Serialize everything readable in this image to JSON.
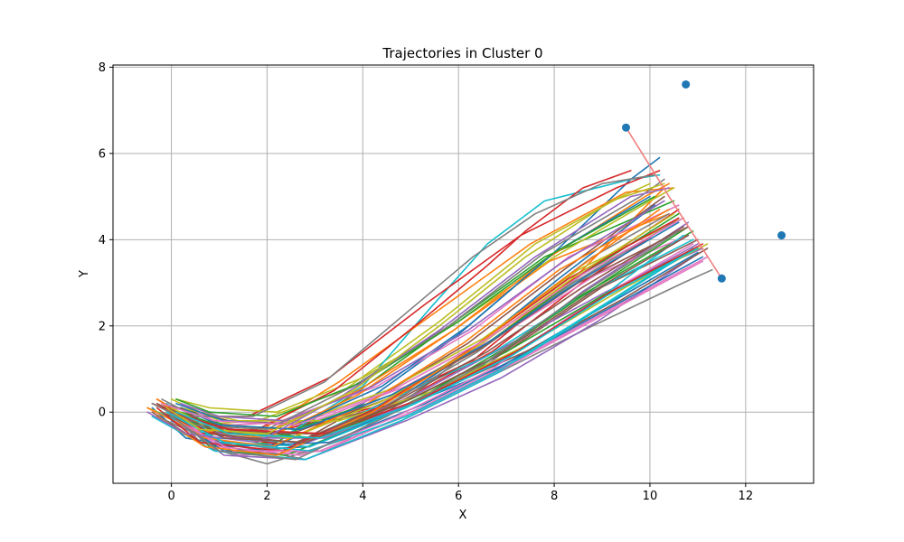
{
  "chart_data": {
    "type": "line",
    "title": "Trajectories in Cluster 0",
    "xlabel": "X",
    "ylabel": "Y",
    "xlim": [
      -1.22,
      13.42
    ],
    "ylim": [
      -1.65,
      8.05
    ],
    "x_ticks": [
      0,
      2,
      4,
      6,
      8,
      10,
      12
    ],
    "y_ticks": [
      0,
      2,
      4,
      6,
      8
    ],
    "grid": true,
    "legend": "none",
    "line_colors": [
      "#1f77b4",
      "#ff7f0e",
      "#2ca02c",
      "#d62728",
      "#9467bd",
      "#8c564b",
      "#e377c2",
      "#7f7f7f",
      "#bcbd22",
      "#17becf"
    ],
    "marker_color": "#1f77b4",
    "connector_color": "#f08080",
    "series": [
      {
        "x": [
          -0.4,
          0.3,
          2.0,
          4.0,
          6.0,
          8.0,
          9.6,
          10.2
        ],
        "y": [
          0.1,
          -0.6,
          -0.9,
          0.2,
          1.8,
          3.7,
          5.4,
          5.9
        ]
      },
      {
        "x": [
          -0.2,
          0.8,
          2.5,
          4.5,
          6.5,
          8.5,
          10.3
        ],
        "y": [
          0.2,
          -0.4,
          -0.6,
          0.3,
          1.5,
          3.2,
          5.2
        ]
      },
      {
        "x": [
          0.0,
          0.9,
          2.2,
          3.8,
          5.8,
          7.8,
          10.5
        ],
        "y": [
          -0.1,
          -0.8,
          -0.7,
          0.4,
          2.0,
          3.6,
          4.9
        ]
      },
      {
        "x": [
          -0.3,
          0.6,
          2.0,
          4.2,
          6.3,
          8.3,
          10.6
        ],
        "y": [
          0.3,
          -0.3,
          -0.5,
          0.1,
          1.2,
          3.0,
          4.7
        ]
      },
      {
        "x": [
          0.1,
          1.0,
          2.6,
          4.6,
          6.6,
          8.6,
          10.8
        ],
        "y": [
          0.0,
          -0.5,
          -0.8,
          0.0,
          1.1,
          2.8,
          4.4
        ]
      },
      {
        "x": [
          -0.2,
          1.2,
          3.0,
          5.0,
          7.0,
          9.0,
          11.0
        ],
        "y": [
          0.2,
          -0.2,
          -0.3,
          0.3,
          1.4,
          2.9,
          4.0
        ]
      },
      {
        "x": [
          0.0,
          1.4,
          3.2,
          5.2,
          7.2,
          9.2,
          11.2
        ],
        "y": [
          -0.2,
          -1.0,
          -0.9,
          0.1,
          1.2,
          2.4,
          3.6
        ]
      },
      {
        "x": [
          0.2,
          1.0,
          2.8,
          4.8,
          6.8,
          8.8,
          10.7,
          11.3
        ],
        "y": [
          0.1,
          -0.7,
          -1.1,
          -0.2,
          0.9,
          2.0,
          3.0,
          3.3
        ]
      },
      {
        "x": [
          -0.5,
          0.4,
          1.8,
          3.6,
          5.6,
          7.6,
          9.4,
          10.0
        ],
        "y": [
          0.1,
          -0.3,
          -0.2,
          0.5,
          2.1,
          3.9,
          5.0,
          5.3
        ]
      },
      {
        "x": [
          -0.1,
          0.7,
          2.3,
          4.0,
          5.4,
          6.6,
          7.8,
          9.6,
          10.2
        ],
        "y": [
          0.2,
          -0.4,
          -0.6,
          0.6,
          2.4,
          3.9,
          4.9,
          5.4,
          5.5
        ]
      },
      {
        "x": [
          0.1,
          1.1,
          2.7,
          4.3,
          6.1,
          8.1,
          10.1
        ],
        "y": [
          -0.1,
          -0.6,
          -0.7,
          0.0,
          1.3,
          3.1,
          4.8
        ]
      },
      {
        "x": [
          -0.3,
          0.5,
          2.1,
          3.9,
          5.9,
          7.9,
          10.4
        ],
        "y": [
          0.3,
          -0.2,
          -0.4,
          0.5,
          1.9,
          3.5,
          4.6
        ]
      },
      {
        "x": [
          0.0,
          0.9,
          2.4,
          4.4,
          6.4,
          8.4,
          10.9
        ],
        "y": [
          0.0,
          -0.9,
          -1.0,
          -0.1,
          1.0,
          2.6,
          4.2
        ]
      },
      {
        "x": [
          -0.2,
          0.8,
          2.6,
          4.7,
          6.7,
          8.7,
          10.6
        ],
        "y": [
          0.2,
          -0.5,
          -0.8,
          0.2,
          1.4,
          3.1,
          4.5
        ]
      },
      {
        "x": [
          0.2,
          1.3,
          3.1,
          5.1,
          7.1,
          9.1,
          11.1
        ],
        "y": [
          0.1,
          -0.4,
          -0.5,
          0.4,
          1.6,
          2.8,
          3.8
        ]
      },
      {
        "x": [
          -0.4,
          0.6,
          2.2,
          4.1,
          6.2,
          8.2,
          10.3
        ],
        "y": [
          0.0,
          -0.7,
          -1.0,
          0.2,
          1.6,
          3.3,
          5.0
        ]
      },
      {
        "x": [
          0.1,
          1.2,
          3.0,
          4.9,
          6.9,
          8.9,
          10.8
        ],
        "y": [
          -0.1,
          -0.3,
          -0.2,
          0.6,
          1.8,
          3.2,
          4.1
        ]
      },
      {
        "x": [
          -0.1,
          0.7,
          2.0,
          3.7,
          5.3,
          7.0,
          8.8,
          10.4
        ],
        "y": [
          0.1,
          -0.8,
          -1.2,
          -0.6,
          0.6,
          2.1,
          3.6,
          4.6
        ]
      },
      {
        "x": [
          0.0,
          1.0,
          2.5,
          4.5,
          6.5,
          8.5,
          10.7
        ],
        "y": [
          0.3,
          -0.2,
          -0.3,
          0.5,
          1.7,
          3.3,
          4.5
        ]
      },
      {
        "x": [
          -0.3,
          0.9,
          2.7,
          4.6,
          6.6,
          8.6,
          10.9
        ],
        "y": [
          0.0,
          -0.6,
          -0.7,
          0.3,
          1.3,
          2.7,
          4.0
        ]
      },
      {
        "x": [
          0.1,
          1.1,
          2.9,
          4.8,
          6.8,
          8.8,
          11.0
        ],
        "y": [
          -0.2,
          -0.9,
          -0.8,
          0.1,
          1.0,
          2.3,
          3.7
        ]
      },
      {
        "x": [
          -0.2,
          0.5,
          1.9,
          3.5,
          5.5,
          7.5,
          9.5,
          10.5
        ],
        "y": [
          0.2,
          -0.3,
          -0.4,
          0.7,
          2.3,
          3.9,
          5.1,
          5.2
        ]
      },
      {
        "x": [
          0.2,
          1.2,
          3.0,
          5.0,
          7.0,
          9.0,
          10.8
        ],
        "y": [
          0.0,
          -0.4,
          -0.6,
          0.2,
          1.5,
          3.0,
          4.3
        ]
      },
      {
        "x": [
          -0.4,
          0.3,
          1.6,
          3.3,
          5.3,
          7.3,
          9.3,
          10.2
        ],
        "y": [
          0.2,
          -0.1,
          -0.1,
          0.8,
          2.5,
          4.1,
          5.2,
          5.6
        ]
      },
      {
        "x": [
          0.0,
          1.1,
          2.8,
          4.9,
          6.9,
          8.9,
          10.9
        ],
        "y": [
          -0.1,
          -1.0,
          -1.1,
          -0.2,
          0.8,
          2.1,
          3.6
        ]
      },
      {
        "x": [
          -0.1,
          1.3,
          3.4,
          5.4,
          7.4,
          9.4,
          11.2
        ],
        "y": [
          0.1,
          -0.5,
          -0.5,
          0.4,
          1.4,
          2.6,
          3.8
        ]
      },
      {
        "x": [
          0.2,
          0.9,
          2.3,
          4.3,
          6.3,
          8.3,
          10.6
        ],
        "y": [
          0.2,
          -0.2,
          -0.2,
          0.6,
          1.9,
          3.6,
          4.8
        ]
      },
      {
        "x": [
          -0.3,
          0.7,
          2.4,
          4.4,
          6.4,
          8.4,
          10.5
        ],
        "y": [
          -0.1,
          -0.6,
          -0.9,
          0.1,
          1.4,
          3.0,
          4.4
        ]
      },
      {
        "x": [
          0.1,
          0.8,
          2.2,
          4.0,
          6.0,
          8.0,
          10.0,
          10.5
        ],
        "y": [
          0.3,
          0.1,
          0.0,
          0.8,
          2.1,
          3.6,
          4.9,
          5.2
        ]
      },
      {
        "x": [
          -0.2,
          1.0,
          2.9,
          4.9,
          6.9,
          8.9,
          10.7
        ],
        "y": [
          0.0,
          -0.7,
          -0.8,
          0.1,
          1.2,
          2.6,
          4.1
        ]
      },
      {
        "x": [
          0.0,
          1.2,
          3.3,
          5.3,
          7.3,
          9.3,
          11.1
        ],
        "y": [
          -0.2,
          -0.8,
          -0.7,
          0.2,
          1.3,
          2.5,
          3.6
        ]
      },
      {
        "x": [
          -0.5,
          0.4,
          2.0,
          3.9,
          5.9,
          7.9,
          9.9,
          10.4
        ],
        "y": [
          0.1,
          -0.4,
          -0.6,
          0.4,
          1.9,
          3.6,
          5.0,
          5.3
        ]
      },
      {
        "x": [
          0.2,
          1.1,
          2.6,
          4.6,
          6.6,
          8.6,
          10.6
        ],
        "y": [
          0.1,
          -0.3,
          -0.4,
          0.4,
          1.6,
          3.2,
          4.6
        ]
      },
      {
        "x": [
          -0.1,
          0.6,
          1.8,
          3.4,
          5.2,
          6.6,
          7.4,
          8.6,
          9.6
        ],
        "y": [
          0.0,
          -0.5,
          -0.4,
          0.5,
          2.1,
          3.4,
          4.2,
          5.2,
          5.6
        ]
      },
      {
        "x": [
          0.1,
          1.3,
          3.2,
          5.2,
          7.2,
          9.2,
          11.0
        ],
        "y": [
          -0.1,
          -0.6,
          -0.6,
          0.3,
          1.4,
          2.8,
          3.9
        ]
      },
      {
        "x": [
          -0.3,
          0.8,
          2.5,
          4.5,
          6.5,
          8.5,
          10.8
        ],
        "y": [
          0.2,
          -0.4,
          -0.5,
          0.3,
          1.5,
          3.0,
          4.3
        ]
      },
      {
        "x": [
          0.0,
          1.0,
          2.7,
          4.7,
          6.7,
          8.7,
          10.9
        ],
        "y": [
          0.0,
          -0.8,
          -1.0,
          -0.1,
          1.0,
          2.5,
          3.9
        ]
      },
      {
        "x": [
          -0.2,
          0.5,
          1.7,
          3.2,
          4.8,
          6.3,
          7.6,
          9.0,
          10.1
        ],
        "y": [
          0.3,
          -0.1,
          -0.1,
          0.7,
          2.2,
          3.6,
          4.6,
          5.3,
          5.5
        ]
      },
      {
        "x": [
          0.2,
          1.4,
          3.5,
          5.5,
          7.5,
          9.5,
          11.2
        ],
        "y": [
          0.1,
          -0.2,
          -0.2,
          0.5,
          1.6,
          2.9,
          3.9
        ]
      },
      {
        "x": [
          -0.4,
          0.9,
          2.8,
          4.8,
          6.8,
          8.8,
          10.8
        ],
        "y": [
          -0.1,
          -0.9,
          -1.1,
          -0.2,
          0.9,
          2.3,
          3.7
        ]
      },
      {
        "x": [
          0.1,
          1.1,
          2.6,
          4.4,
          6.2,
          8.0,
          10.0
        ],
        "y": [
          0.2,
          -0.2,
          -0.3,
          0.6,
          2.0,
          3.7,
          5.0
        ]
      },
      {
        "x": [
          -0.1,
          0.7,
          2.1,
          4.1,
          6.1,
          8.1,
          10.4
        ],
        "y": [
          0.0,
          -0.6,
          -0.8,
          0.2,
          1.6,
          3.3,
          4.7
        ]
      },
      {
        "x": [
          0.0,
          1.2,
          3.0,
          5.0,
          7.0,
          9.0,
          11.0
        ],
        "y": [
          -0.1,
          -0.5,
          -0.6,
          0.3,
          1.4,
          2.7,
          3.8
        ]
      },
      {
        "x": [
          -0.3,
          0.6,
          2.3,
          4.3,
          6.3,
          8.3,
          10.6
        ],
        "y": [
          0.1,
          -0.7,
          -0.9,
          0.1,
          1.5,
          3.1,
          4.5
        ]
      },
      {
        "x": [
          0.2,
          1.0,
          2.4,
          4.2,
          6.2,
          8.2,
          10.3
        ],
        "y": [
          0.2,
          -0.1,
          -0.2,
          0.6,
          1.9,
          3.5,
          4.9
        ]
      },
      {
        "x": [
          -0.2,
          0.8,
          2.6,
          4.6,
          6.6,
          8.6,
          10.7
        ],
        "y": [
          0.0,
          -0.5,
          -0.7,
          0.2,
          1.4,
          2.9,
          4.3
        ]
      },
      {
        "x": [
          0.1,
          1.3,
          3.1,
          5.1,
          7.1,
          9.1,
          11.1
        ],
        "y": [
          -0.2,
          -0.9,
          -0.9,
          0.0,
          1.1,
          2.3,
          3.5
        ]
      },
      {
        "x": [
          -0.4,
          0.5,
          2.0,
          3.8,
          5.8,
          7.8,
          9.8,
          10.3
        ],
        "y": [
          0.2,
          -0.3,
          -0.4,
          0.6,
          2.0,
          3.7,
          5.0,
          5.4
        ]
      },
      {
        "x": [
          0.0,
          0.9,
          2.5,
          4.5,
          6.5,
          8.5,
          10.5
        ],
        "y": [
          0.1,
          -0.4,
          -0.6,
          0.3,
          1.6,
          3.2,
          4.6
        ]
      },
      {
        "x": [
          -0.1,
          1.1,
          2.9,
          4.9,
          6.9,
          8.9,
          10.9
        ],
        "y": [
          0.0,
          -0.7,
          -0.9,
          -0.1,
          1.0,
          2.4,
          3.8
        ]
      },
      {
        "x": [
          0.2,
          1.0,
          2.7,
          4.6,
          6.6,
          8.6,
          10.6
        ],
        "y": [
          0.1,
          -0.3,
          -0.4,
          0.4,
          1.6,
          3.1,
          4.4
        ]
      },
      {
        "x": [
          -0.3,
          0.7,
          2.2,
          4.2,
          6.2,
          8.2,
          10.2
        ],
        "y": [
          -0.1,
          -0.8,
          -1.0,
          0.0,
          1.4,
          3.1,
          4.7
        ]
      },
      {
        "x": [
          0.1,
          0.8,
          2.2,
          4.0,
          6.0,
          8.0,
          10.1
        ],
        "y": [
          0.3,
          0.0,
          -0.1,
          0.7,
          2.1,
          3.7,
          5.0
        ]
      },
      {
        "x": [
          0.0,
          1.2,
          3.2,
          5.2,
          7.2,
          9.2,
          11.1
        ],
        "y": [
          0.0,
          -0.4,
          -0.5,
          0.3,
          1.4,
          2.8,
          3.9
        ]
      },
      {
        "x": [
          -0.5,
          0.3,
          1.8,
          3.6,
          5.6,
          7.6,
          9.6,
          10.4
        ],
        "y": [
          0.0,
          -0.5,
          -0.7,
          0.4,
          1.9,
          3.6,
          5.0,
          5.2
        ]
      },
      {
        "x": [
          0.2,
          1.1,
          2.8,
          4.8,
          6.8,
          8.8,
          10.8
        ],
        "y": [
          0.1,
          -0.6,
          -0.7,
          0.2,
          1.3,
          2.8,
          4.1
        ]
      },
      {
        "x": [
          -0.2,
          0.9,
          2.6,
          4.6,
          6.6,
          8.6,
          10.7
        ],
        "y": [
          0.2,
          -0.2,
          -0.3,
          0.5,
          1.7,
          3.2,
          4.5
        ]
      },
      {
        "x": [
          0.0,
          1.0,
          2.6,
          4.5,
          6.5,
          8.5,
          10.6
        ],
        "y": [
          -0.1,
          -0.9,
          -1.1,
          -0.1,
          1.1,
          2.7,
          4.2
        ]
      },
      {
        "x": [
          -0.1,
          0.6,
          2.0,
          3.8,
          5.6,
          7.4,
          9.2,
          10.3
        ],
        "y": [
          0.1,
          -0.4,
          -0.5,
          0.5,
          2.0,
          3.6,
          4.9,
          5.3
        ]
      },
      {
        "x": [
          0.1,
          1.2,
          3.1,
          5.1,
          7.1,
          9.1,
          11.0
        ],
        "y": [
          0.0,
          -0.5,
          -0.6,
          0.2,
          1.3,
          2.7,
          3.8
        ]
      }
    ],
    "highlight_points": [
      {
        "x": 9.5,
        "y": 6.6
      },
      {
        "x": 10.75,
        "y": 7.6
      },
      {
        "x": 12.75,
        "y": 4.1
      },
      {
        "x": 11.5,
        "y": 3.1
      }
    ],
    "connector_line": {
      "x": [
        9.5,
        10.4,
        11.5
      ],
      "y": [
        6.6,
        5.0,
        3.1
      ]
    }
  }
}
